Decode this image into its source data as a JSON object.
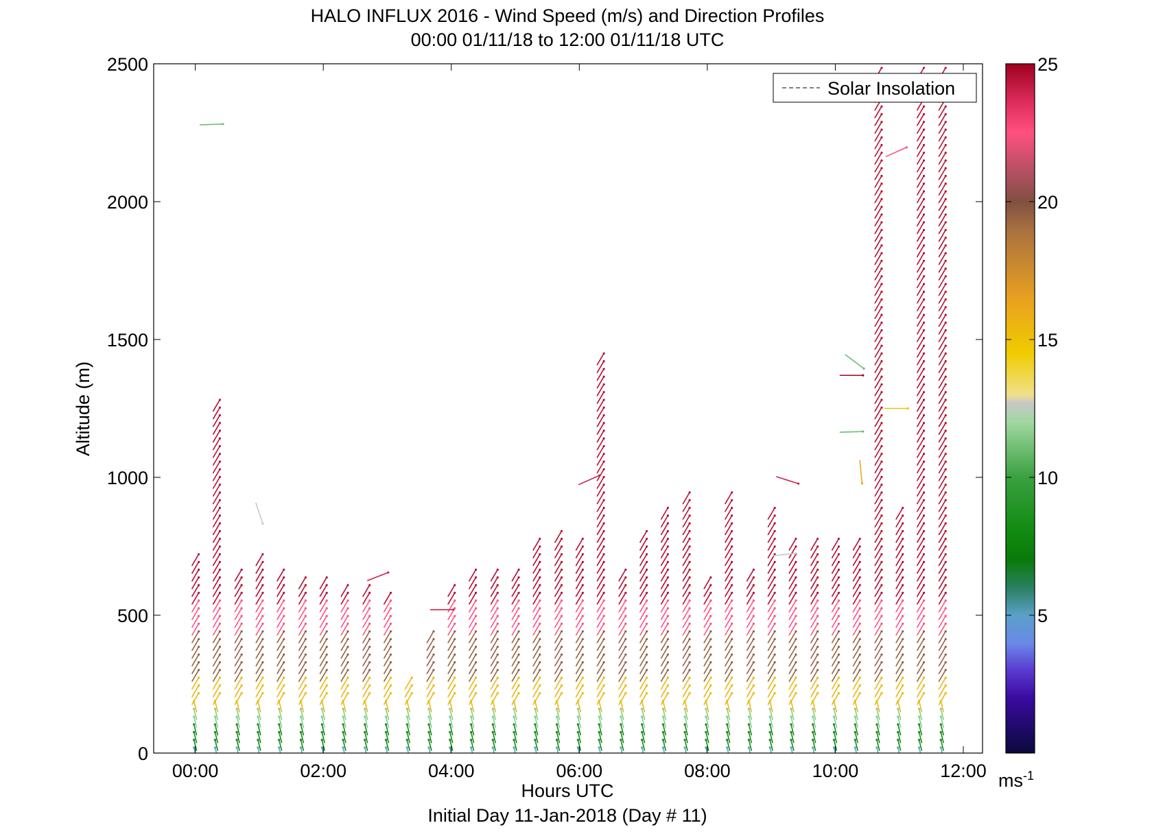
{
  "chart_data": {
    "type": "vector-profile",
    "title": "HALO INFLUX 2016 - Wind Speed (m/s) and Direction Profiles",
    "subtitle": "00:00 01/11/18 to 12:00 01/11/18  UTC",
    "xlabel": "Hours UTC",
    "xlabel2": "Initial Day 11-Jan-2018 (Day # 11)",
    "ylabel": "Altitude (m)",
    "xlim": [
      -0.65,
      12.3
    ],
    "ylim": [
      0,
      2500
    ],
    "x_ticks": [
      0,
      2,
      4,
      6,
      8,
      10,
      12
    ],
    "x_tick_labels": [
      "00:00",
      "02:00",
      "04:00",
      "06:00",
      "08:00",
      "10:00",
      "12:00"
    ],
    "y_ticks": [
      0,
      500,
      1000,
      1500,
      2000,
      2500
    ],
    "y_tick_labels": [
      "0",
      "500",
      "1000",
      "1500",
      "2000",
      "2500"
    ],
    "colorbar": {
      "min": 0,
      "max": 25,
      "ticks": [
        5,
        10,
        15,
        20,
        25
      ],
      "tick_labels": [
        "5",
        "10",
        "15",
        "20",
        "25"
      ],
      "unit": "ms",
      "unit_exp": "-1",
      "stops": [
        [
          0,
          "#0a0a3c"
        ],
        [
          2,
          "#3a0aa0"
        ],
        [
          3,
          "#5a3ad0"
        ],
        [
          4,
          "#6a8ae8"
        ],
        [
          5,
          "#5aa0c8"
        ],
        [
          6,
          "#2a8060"
        ],
        [
          7,
          "#0a7a0a"
        ],
        [
          8,
          "#108a10"
        ],
        [
          10,
          "#3aa040"
        ],
        [
          12,
          "#a0d8a0"
        ],
        [
          12.7,
          "#c8c8c8"
        ],
        [
          13,
          "#f0e08a"
        ],
        [
          14.5,
          "#f0cc00"
        ],
        [
          16.5,
          "#e8a020"
        ],
        [
          19,
          "#a87040"
        ],
        [
          20,
          "#805040"
        ],
        [
          21,
          "#b05060"
        ],
        [
          22.5,
          "#ff5080"
        ],
        [
          23.5,
          "#e03060"
        ],
        [
          25,
          "#a00020"
        ]
      ]
    },
    "legend": {
      "entries": [
        "Solar Insolation"
      ],
      "position": "top-right"
    },
    "profiles": [
      {
        "t": 0.0,
        "top": 740
      },
      {
        "t": 0.33,
        "top": 1290
      },
      {
        "t": 0.67,
        "top": 690
      },
      {
        "t": 1.0,
        "top": 720
      },
      {
        "t": 1.33,
        "top": 690
      },
      {
        "t": 1.67,
        "top": 660
      },
      {
        "t": 2.0,
        "top": 660
      },
      {
        "t": 2.33,
        "top": 620
      },
      {
        "t": 2.67,
        "top": 620
      },
      {
        "t": 3.0,
        "top": 590
      },
      {
        "t": 3.33,
        "top": 280
      },
      {
        "t": 3.67,
        "top": 460
      },
      {
        "t": 4.0,
        "top": 620
      },
      {
        "t": 4.33,
        "top": 690
      },
      {
        "t": 4.67,
        "top": 690
      },
      {
        "t": 5.0,
        "top": 690
      },
      {
        "t": 5.33,
        "top": 790
      },
      {
        "t": 5.67,
        "top": 830
      },
      {
        "t": 6.0,
        "top": 790
      },
      {
        "t": 6.33,
        "top": 1460
      },
      {
        "t": 6.67,
        "top": 690
      },
      {
        "t": 7.0,
        "top": 830
      },
      {
        "t": 7.33,
        "top": 910
      },
      {
        "t": 7.67,
        "top": 950
      },
      {
        "t": 8.0,
        "top": 660
      },
      {
        "t": 8.33,
        "top": 950
      },
      {
        "t": 8.67,
        "top": 690
      },
      {
        "t": 9.0,
        "top": 910
      },
      {
        "t": 9.33,
        "top": 790
      },
      {
        "t": 9.67,
        "top": 790
      },
      {
        "t": 10.0,
        "top": 790
      },
      {
        "t": 10.33,
        "top": 790
      },
      {
        "t": 10.67,
        "top": 2500
      },
      {
        "t": 11.0,
        "top": 910
      },
      {
        "t": 11.33,
        "top": 2500
      },
      {
        "t": 11.67,
        "top": 2500
      }
    ],
    "isolated_vectors": [
      {
        "t": 0.25,
        "alt": 2280,
        "speed": 11,
        "u": 1,
        "v": 0.03
      },
      {
        "t": 1.0,
        "alt": 870,
        "speed": 12.6,
        "u": 0.3,
        "v": -0.9
      },
      {
        "t": 3.85,
        "alt": 520,
        "speed": 24,
        "u": 1,
        "v": 0
      },
      {
        "t": 2.85,
        "alt": 640,
        "speed": 24,
        "u": 0.9,
        "v": 0.35
      },
      {
        "t": 6.15,
        "alt": 990,
        "speed": 24,
        "u": 0.9,
        "v": 0.4
      },
      {
        "t": 9.25,
        "alt": 990,
        "speed": 24,
        "u": 0.95,
        "v": -0.3
      },
      {
        "t": 10.25,
        "alt": 1370,
        "speed": 25,
        "u": 1,
        "v": 0
      },
      {
        "t": 10.3,
        "alt": 1420,
        "speed": 11,
        "u": 0.8,
        "v": -0.6
      },
      {
        "t": 10.25,
        "alt": 1165,
        "speed": 11,
        "u": 1,
        "v": 0.03
      },
      {
        "t": 10.4,
        "alt": 1020,
        "speed": 16,
        "u": 0.1,
        "v": -1
      },
      {
        "t": 10.95,
        "alt": 1250,
        "speed": 15,
        "u": 1,
        "v": 0
      },
      {
        "t": 10.95,
        "alt": 2180,
        "speed": 22.5,
        "u": 0.9,
        "v": 0.4
      },
      {
        "t": 9.2,
        "alt": 720,
        "speed": 12.6,
        "u": 1,
        "v": 0.1
      }
    ]
  }
}
